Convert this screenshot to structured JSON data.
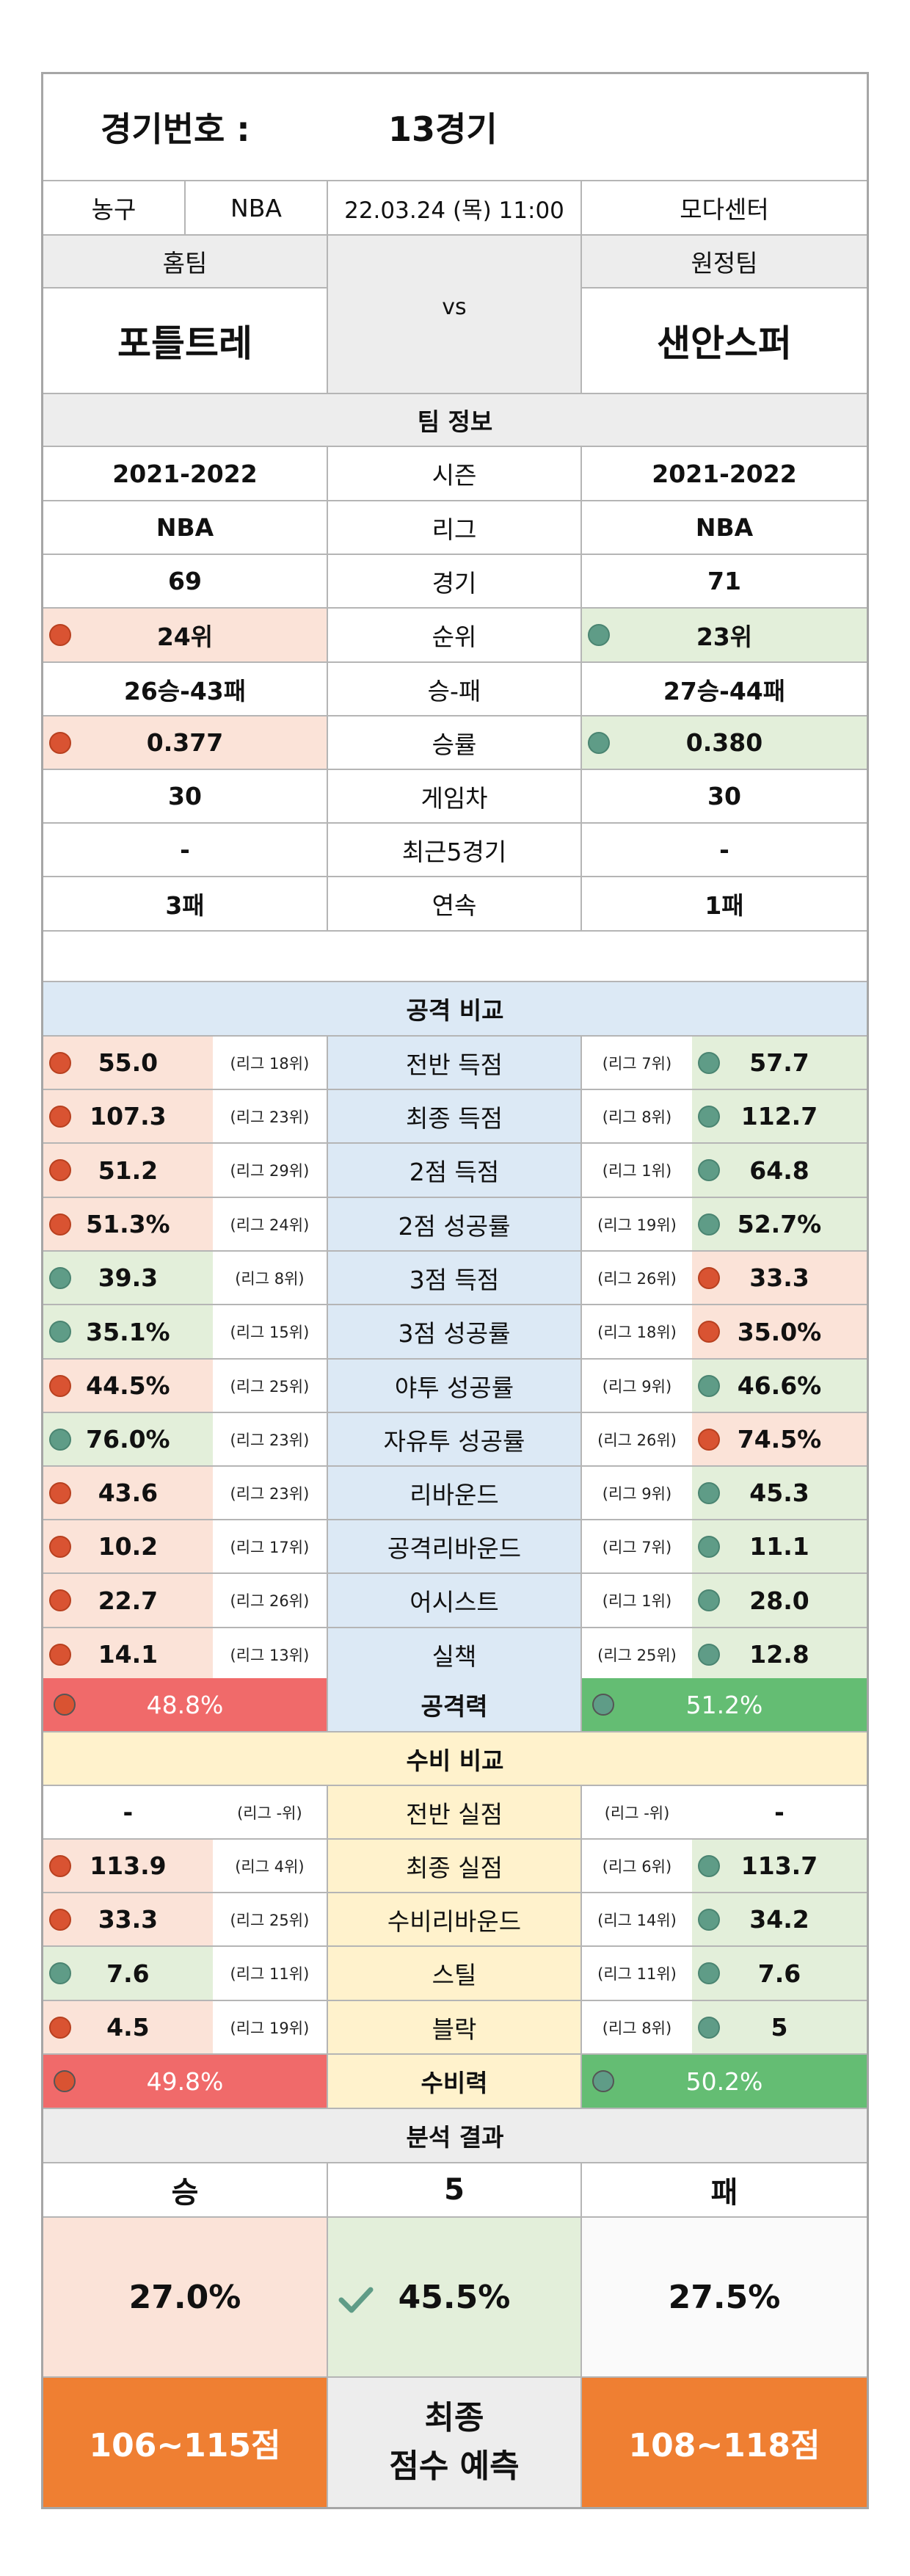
{
  "header": {
    "label": "경기번호 :",
    "game_no": "13경기"
  },
  "info": {
    "sport": "농구",
    "league": "NBA",
    "datetime": "22.03.24 (목) 11:00",
    "venue": "모다센터"
  },
  "teams": {
    "home_label": "홈팀",
    "away_label": "원정팀",
    "home": "포틀트레",
    "away": "샌안스퍼",
    "vs": "vs"
  },
  "team_info": {
    "title": "팀 정보",
    "rows": [
      {
        "home": "2021-2022",
        "label": "시즌",
        "away": "2021-2022"
      },
      {
        "home": "NBA",
        "label": "리그",
        "away": "NBA"
      },
      {
        "home": "69",
        "label": "경기",
        "away": "71"
      },
      {
        "home": "24위",
        "label": "순위",
        "away": "23위"
      },
      {
        "home": "26승-43패",
        "label": "승-패",
        "away": "27승-44패"
      },
      {
        "home": "0.377",
        "label": "승률",
        "away": "0.380"
      },
      {
        "home": "30",
        "label": "게임차",
        "away": "30"
      },
      {
        "home": "-",
        "label": "최근5경기",
        "away": "-"
      },
      {
        "home": "3패",
        "label": "연속",
        "away": "1패"
      }
    ]
  },
  "offense": {
    "title": "공격 비교",
    "rows": [
      {
        "home": "55.0",
        "home_rank": "(리그 18위)",
        "label": "전반 득점",
        "away_rank": "(리그 7위)",
        "away": "57.7"
      },
      {
        "home": "107.3",
        "home_rank": "(리그 23위)",
        "label": "최종 득점",
        "away_rank": "(리그 8위)",
        "away": "112.7"
      },
      {
        "home": "51.2",
        "home_rank": "(리그 29위)",
        "label": "2점 득점",
        "away_rank": "(리그 1위)",
        "away": "64.8"
      },
      {
        "home": "51.3%",
        "home_rank": "(리그 24위)",
        "label": "2점 성공률",
        "away_rank": "(리그 19위)",
        "away": "52.7%"
      },
      {
        "home": "39.3",
        "home_rank": "(리그 8위)",
        "label": "3점 득점",
        "away_rank": "(리그 26위)",
        "away": "33.3"
      },
      {
        "home": "35.1%",
        "home_rank": "(리그 15위)",
        "label": "3점 성공률",
        "away_rank": "(리그 18위)",
        "away": "35.0%"
      },
      {
        "home": "44.5%",
        "home_rank": "(리그 25위)",
        "label": "야투 성공률",
        "away_rank": "(리그 9위)",
        "away": "46.6%"
      },
      {
        "home": "76.0%",
        "home_rank": "(리그 23위)",
        "label": "자유투 성공률",
        "away_rank": "(리그 26위)",
        "away": "74.5%"
      },
      {
        "home": "43.6",
        "home_rank": "(리그 23위)",
        "label": "리바운드",
        "away_rank": "(리그 9위)",
        "away": "45.3"
      },
      {
        "home": "10.2",
        "home_rank": "(리그 17위)",
        "label": "공격리바운드",
        "away_rank": "(리그 7위)",
        "away": "11.1"
      },
      {
        "home": "22.7",
        "home_rank": "(리그 26위)",
        "label": "어시스트",
        "away_rank": "(리그 1위)",
        "away": "28.0"
      },
      {
        "home": "14.1",
        "home_rank": "(리그 13위)",
        "label": "실책",
        "away_rank": "(리그 25위)",
        "away": "12.8"
      }
    ],
    "power": {
      "home": "48.8%",
      "label": "공격력",
      "away": "51.2%"
    }
  },
  "defense": {
    "title": "수비 비교",
    "rows": [
      {
        "home": "-",
        "home_rank": "(리그 -위)",
        "label": "전반 실점",
        "away_rank": "(리그 -위)",
        "away": "-"
      },
      {
        "home": "113.9",
        "home_rank": "(리그 4위)",
        "label": "최종 실점",
        "away_rank": "(리그 6위)",
        "away": "113.7"
      },
      {
        "home": "33.3",
        "home_rank": "(리그 25위)",
        "label": "수비리바운드",
        "away_rank": "(리그 14위)",
        "away": "34.2"
      },
      {
        "home": "7.6",
        "home_rank": "(리그 11위)",
        "label": "스틸",
        "away_rank": "(리그 11위)",
        "away": "7.6"
      },
      {
        "home": "4.5",
        "home_rank": "(리그 19위)",
        "label": "블락",
        "away_rank": "(리그 8위)",
        "away": "5"
      }
    ],
    "power": {
      "home": "49.8%",
      "label": "수비력",
      "away": "50.2%"
    }
  },
  "result": {
    "title": "분석 결과",
    "win": "승",
    "draw": "5",
    "lose": "패",
    "win_pct": "27.0%",
    "draw_pct": "45.5%",
    "lose_pct": "27.5%",
    "home_score": "106~115점",
    "pred_line1": "최종",
    "pred_line2": "점수 예측",
    "away_score": "108~118점"
  },
  "colors": {
    "better": "#5f9c87",
    "worse": "#d95332",
    "accent_orange": "#ef7f32"
  }
}
